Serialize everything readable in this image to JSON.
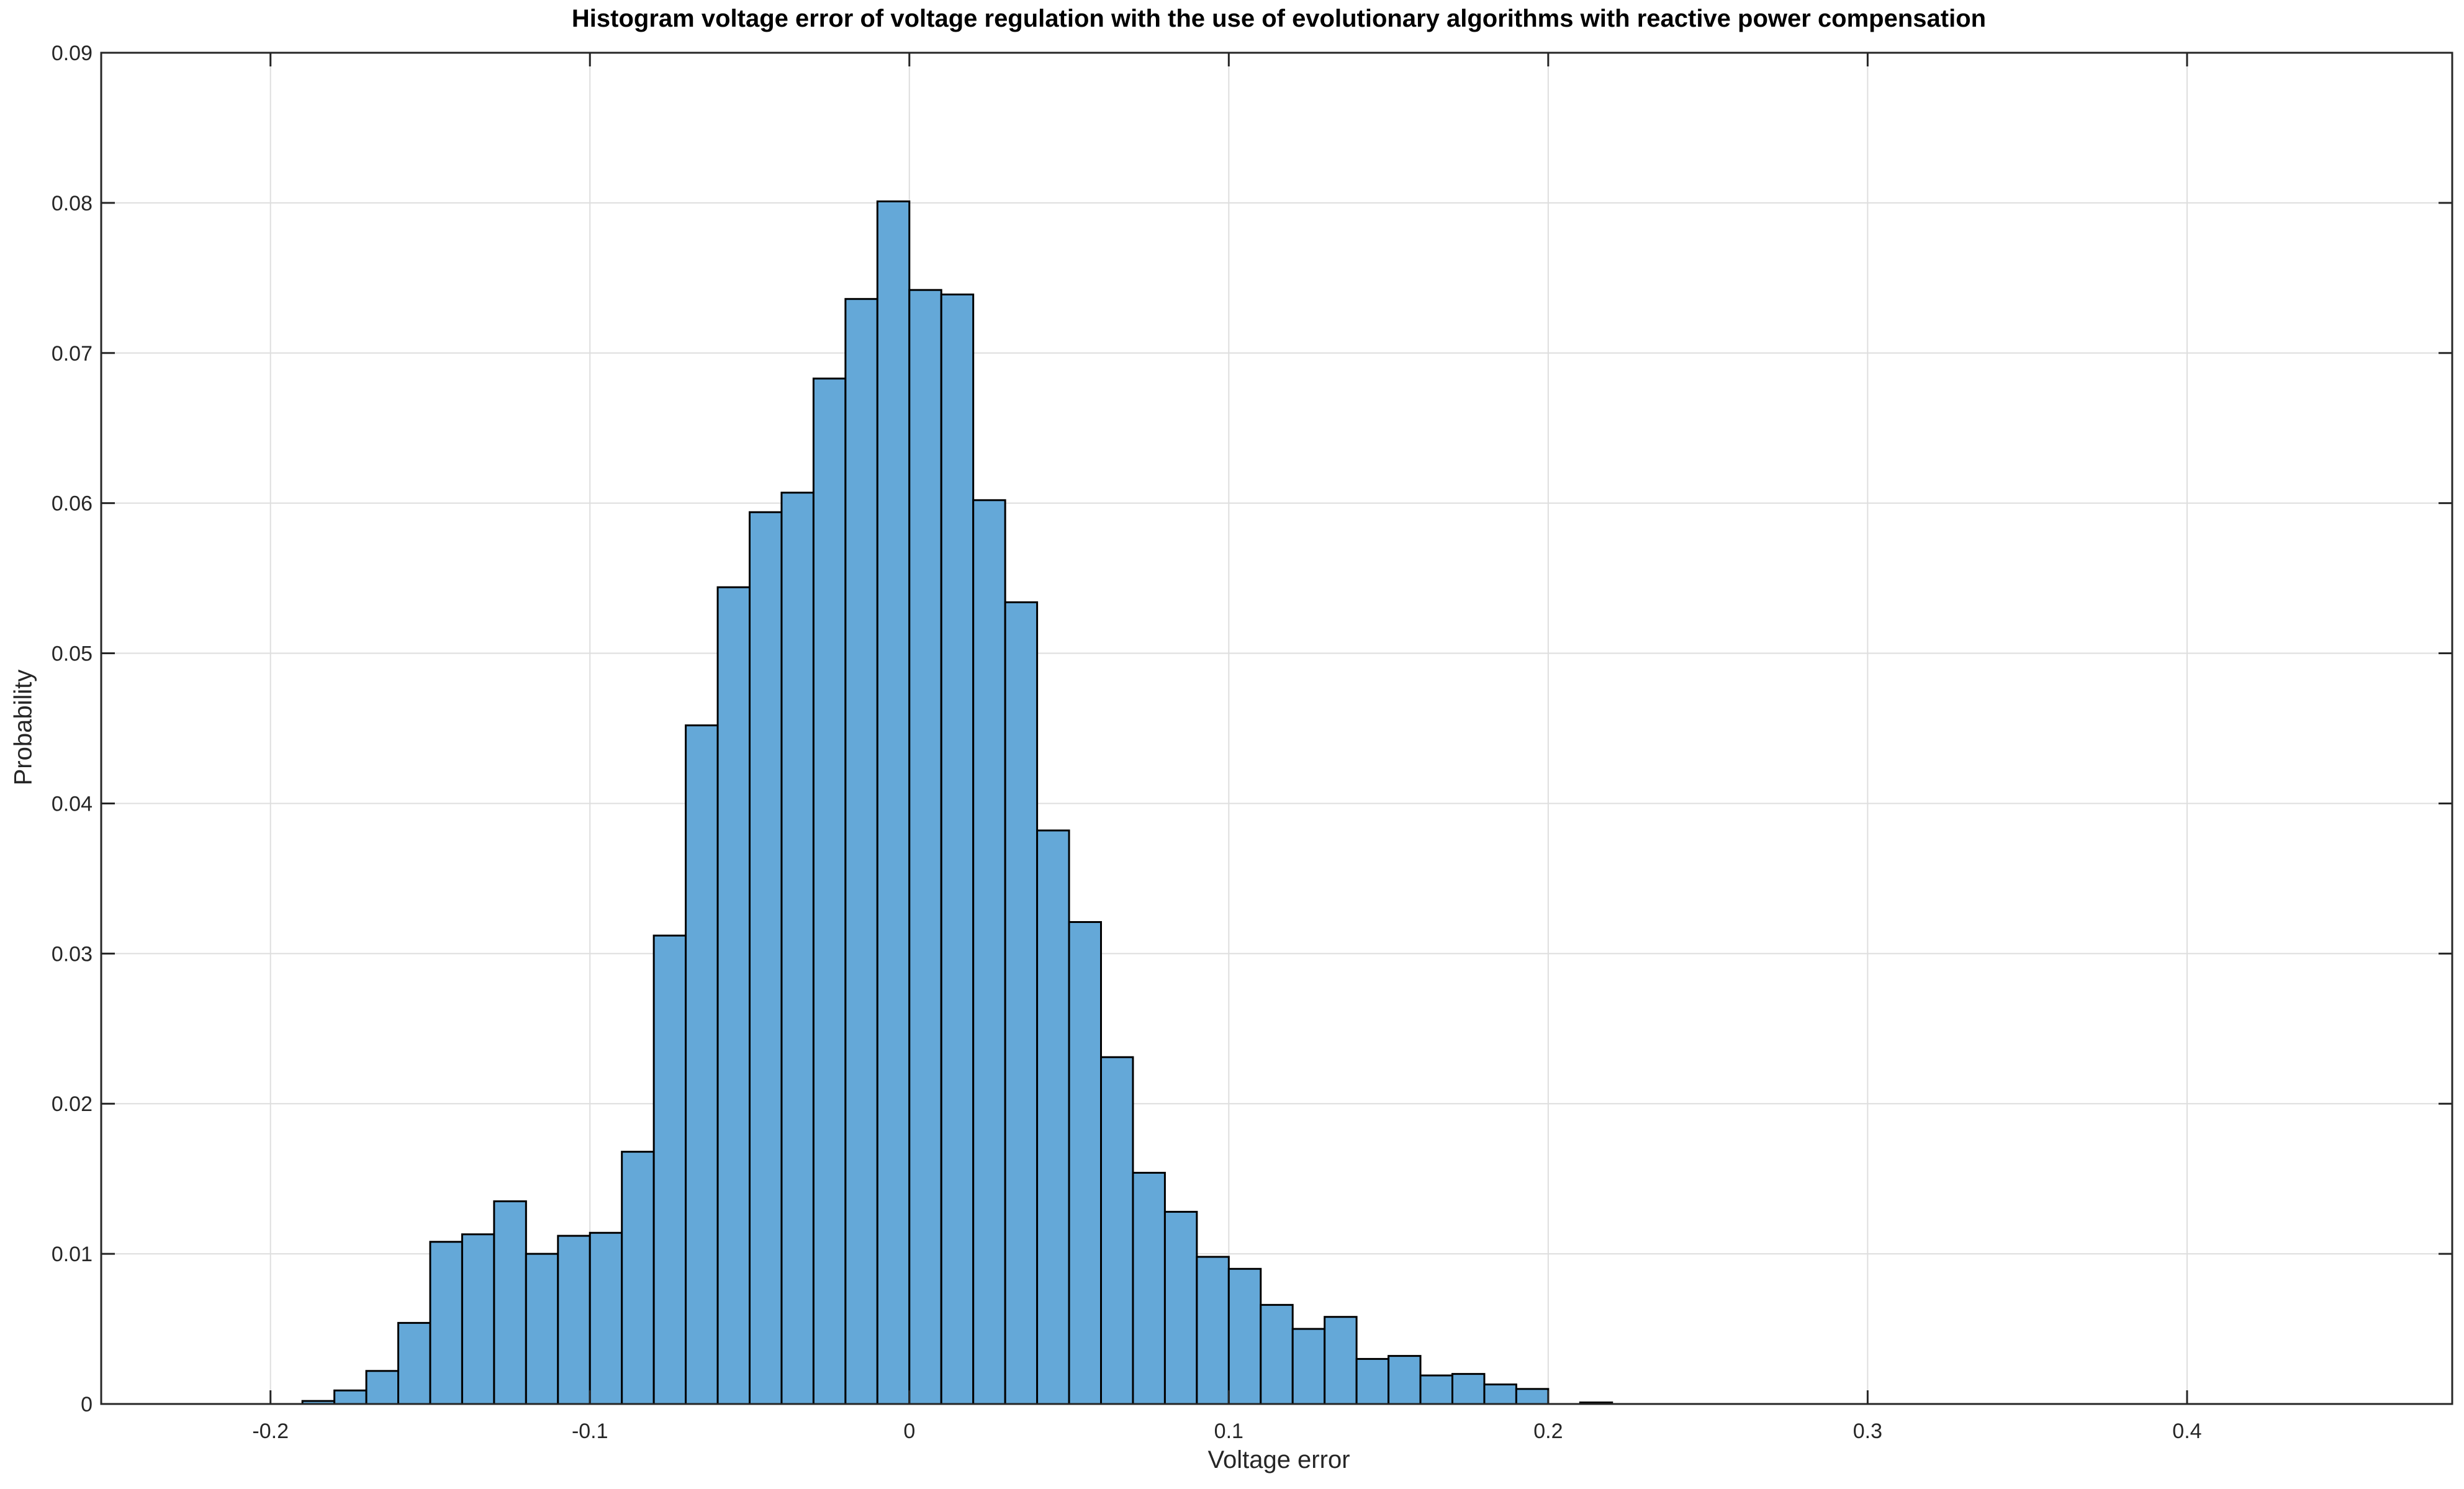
{
  "chart_data": {
    "type": "bar",
    "title": "Histogram voltage error of voltage regulation with the use of evolutionary algorithms with reactive power compensation",
    "xlabel": "Voltage error",
    "ylabel": "Probability",
    "xlim": [
      -0.253,
      0.483
    ],
    "ylim": [
      0,
      0.09
    ],
    "grid": true,
    "bin_width": 0.01,
    "x_ticks": [
      -0.2,
      -0.1,
      0,
      0.1,
      0.2,
      0.3,
      0.4
    ],
    "x_tick_labels": [
      "-0.2",
      "-0.1",
      "0",
      "0.1",
      "0.2",
      "0.3",
      "0.4"
    ],
    "y_ticks": [
      0,
      0.01,
      0.02,
      0.03,
      0.04,
      0.05,
      0.06,
      0.07,
      0.08,
      0.09
    ],
    "y_tick_labels": [
      "0",
      "0.01",
      "0.02",
      "0.03",
      "0.04",
      "0.05",
      "0.06",
      "0.07",
      "0.08",
      "0.09"
    ],
    "bin_lefts": [
      -0.22,
      -0.21,
      -0.2,
      -0.19,
      -0.18,
      -0.17,
      -0.16,
      -0.15,
      -0.14,
      -0.13,
      -0.12,
      -0.11,
      -0.1,
      -0.09,
      -0.08,
      -0.07,
      -0.06,
      -0.05,
      -0.04,
      -0.03,
      -0.02,
      -0.01,
      0,
      0.01,
      0.02,
      0.03,
      0.04,
      0.05,
      0.06,
      0.07,
      0.08,
      0.09,
      0.1,
      0.11,
      0.12,
      0.13,
      0.14,
      0.15,
      0.16,
      0.17,
      0.18,
      0.19,
      0.2,
      0.21,
      0.22,
      0.23,
      0.24,
      0.25,
      0.26,
      0.27,
      0.28,
      0.29,
      0.3,
      0.31,
      0.32,
      0.33,
      0.34,
      0.35,
      0.36,
      0.37,
      0.38,
      0.39,
      0.4,
      0.41,
      0.42,
      0.43,
      0.44
    ],
    "values": [
      0,
      0,
      0,
      0.0002,
      0.0009,
      0.0022,
      0.0054,
      0.0108,
      0.0113,
      0.0135,
      0.01,
      0.0112,
      0.0114,
      0.0168,
      0.0312,
      0.0452,
      0.0544,
      0.0594,
      0.0607,
      0.0683,
      0.0736,
      0.0801,
      0.0742,
      0.0739,
      0.0602,
      0.0534,
      0.0382,
      0.0321,
      0.0231,
      0.0154,
      0.0128,
      0.0098,
      0.009,
      0.0066,
      0.005,
      0.0058,
      0.003,
      0.0032,
      0.0019,
      0.002,
      0.0013,
      0.001,
      0,
      0.0001,
      0,
      0,
      0,
      0,
      0,
      0,
      0,
      0,
      0,
      0,
      0,
      0,
      0,
      0,
      0,
      0,
      0,
      0,
      0,
      0,
      0,
      0,
      0
    ],
    "bar_color": "#64a8d8",
    "edge_color": "#000000",
    "grid_color": "#dedede",
    "axis_color": "#262626"
  }
}
